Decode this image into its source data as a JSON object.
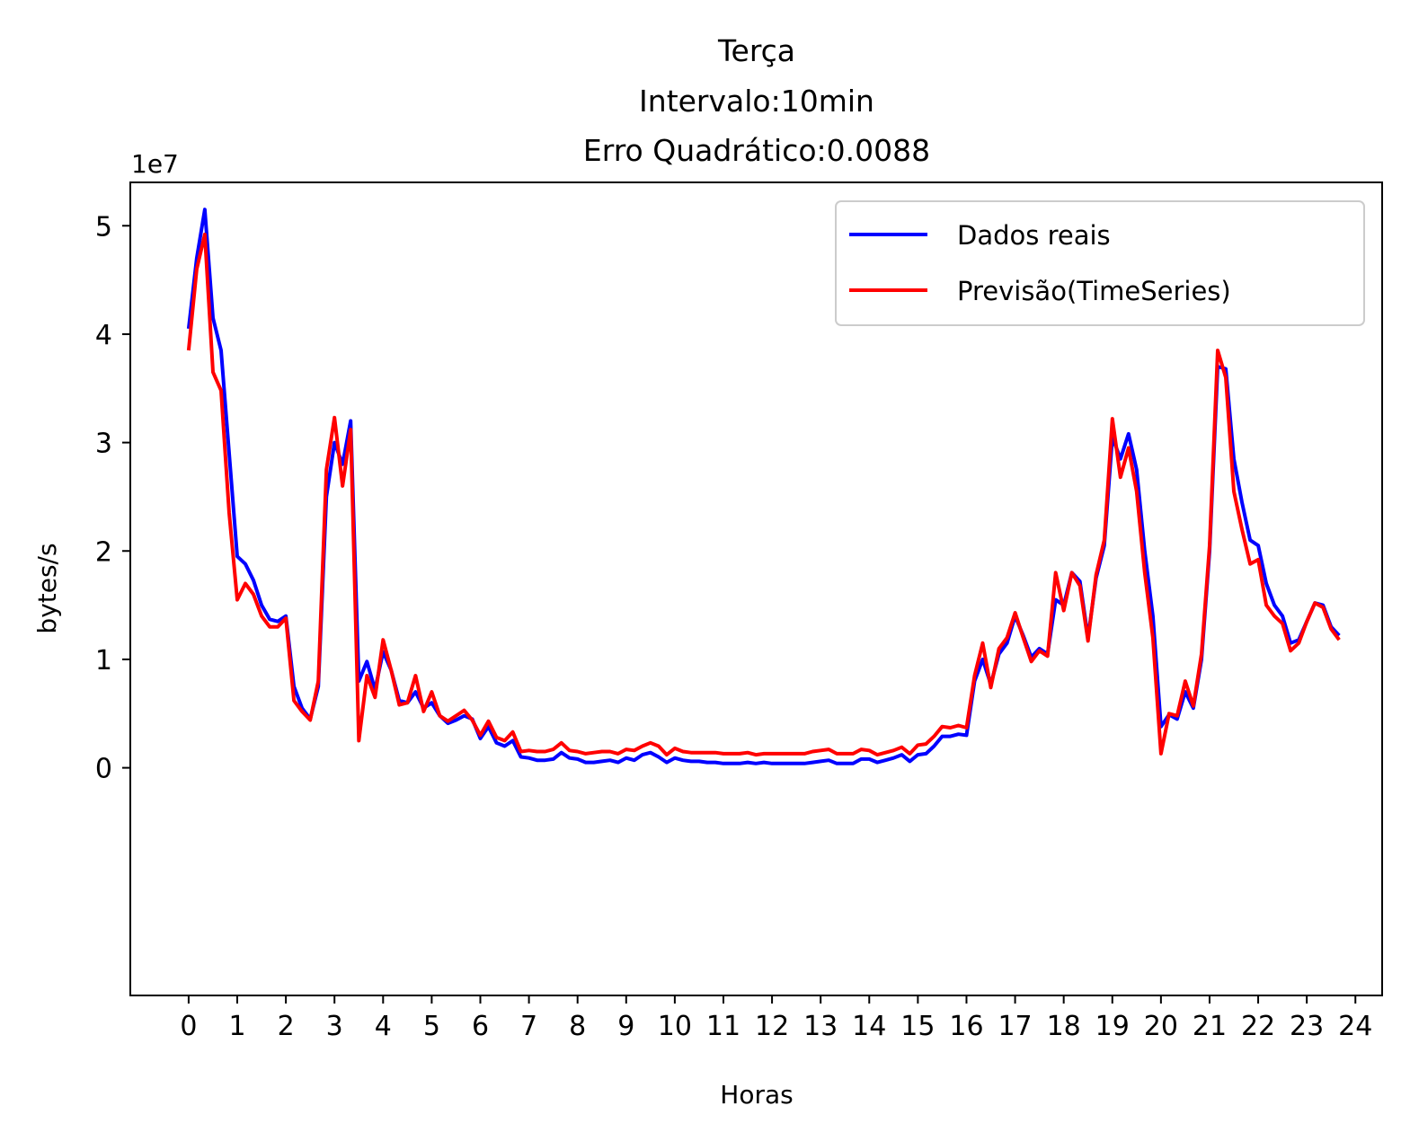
{
  "chart_data": {
    "type": "line",
    "title_lines": [
      "Terça",
      "Intervalo:10min",
      "Erro Quadrático:0.0088"
    ],
    "xlabel": "Horas",
    "ylabel": "bytes/s",
    "y_offset_label": "1e7",
    "y_multiplier": 10000000,
    "xlim": [
      -1.2,
      24.55
    ],
    "ylim": [
      -2.1,
      5.4
    ],
    "x_ticks": [
      0,
      1,
      2,
      3,
      4,
      5,
      6,
      7,
      8,
      9,
      10,
      11,
      12,
      13,
      14,
      15,
      16,
      17,
      18,
      19,
      20,
      21,
      22,
      23,
      24
    ],
    "x_tick_labels": [
      "0",
      "1",
      "2",
      "3",
      "4",
      "5",
      "6",
      "7",
      "8",
      "9",
      "10",
      "11",
      "12",
      "13",
      "14",
      "15",
      "16",
      "17",
      "18",
      "19",
      "20",
      "21",
      "22",
      "23",
      "24"
    ],
    "y_ticks": [
      0,
      1,
      2,
      3,
      4,
      5
    ],
    "y_tick_labels": [
      "0",
      "1",
      "2",
      "3",
      "4",
      "5"
    ],
    "x_step_hours": 0.16667,
    "legend_position": "upper right",
    "series": [
      {
        "name": "Dados reais",
        "color": "#0000ff",
        "values": [
          4.05,
          4.7,
          5.15,
          4.15,
          3.85,
          2.9,
          1.95,
          1.88,
          1.73,
          1.5,
          1.37,
          1.35,
          1.4,
          0.75,
          0.55,
          0.45,
          0.75,
          2.5,
          3.0,
          2.8,
          3.2,
          0.8,
          0.98,
          0.72,
          1.07,
          0.9,
          0.62,
          0.6,
          0.7,
          0.55,
          0.6,
          0.48,
          0.41,
          0.44,
          0.48,
          0.45,
          0.27,
          0.38,
          0.23,
          0.2,
          0.25,
          0.1,
          0.09,
          0.07,
          0.07,
          0.08,
          0.14,
          0.09,
          0.08,
          0.05,
          0.05,
          0.06,
          0.07,
          0.05,
          0.09,
          0.07,
          0.12,
          0.14,
          0.1,
          0.05,
          0.09,
          0.07,
          0.06,
          0.06,
          0.05,
          0.05,
          0.04,
          0.04,
          0.04,
          0.05,
          0.04,
          0.05,
          0.04,
          0.04,
          0.04,
          0.04,
          0.04,
          0.05,
          0.06,
          0.07,
          0.04,
          0.04,
          0.04,
          0.08,
          0.08,
          0.05,
          0.07,
          0.09,
          0.12,
          0.06,
          0.12,
          0.13,
          0.2,
          0.29,
          0.29,
          0.31,
          0.3,
          0.8,
          1.0,
          0.77,
          1.05,
          1.15,
          1.4,
          1.22,
          1.02,
          1.1,
          1.05,
          1.55,
          1.5,
          1.8,
          1.72,
          1.2,
          1.75,
          2.05,
          3.05,
          2.85,
          3.08,
          2.75,
          2.0,
          1.4,
          0.38,
          0.49,
          0.45,
          0.7,
          0.55,
          1.0,
          2.0,
          3.7,
          3.68,
          2.85,
          2.45,
          2.1,
          2.05,
          1.7,
          1.5,
          1.4,
          1.15,
          1.18,
          1.35,
          1.52,
          1.5,
          1.3,
          1.22
        ]
      },
      {
        "name": "Previsão(TimeSeries)",
        "color": "#ff0000",
        "values": [
          3.85,
          4.6,
          4.92,
          3.65,
          3.48,
          2.35,
          1.55,
          1.7,
          1.6,
          1.4,
          1.3,
          1.3,
          1.38,
          0.62,
          0.52,
          0.44,
          0.8,
          2.75,
          3.23,
          2.6,
          3.12,
          0.25,
          0.85,
          0.65,
          1.18,
          0.9,
          0.58,
          0.6,
          0.85,
          0.52,
          0.7,
          0.48,
          0.43,
          0.48,
          0.53,
          0.44,
          0.3,
          0.43,
          0.28,
          0.25,
          0.33,
          0.15,
          0.16,
          0.15,
          0.15,
          0.17,
          0.23,
          0.16,
          0.15,
          0.13,
          0.14,
          0.15,
          0.15,
          0.13,
          0.17,
          0.16,
          0.2,
          0.23,
          0.2,
          0.12,
          0.18,
          0.15,
          0.14,
          0.14,
          0.14,
          0.14,
          0.13,
          0.13,
          0.13,
          0.14,
          0.12,
          0.13,
          0.13,
          0.13,
          0.13,
          0.13,
          0.13,
          0.15,
          0.16,
          0.17,
          0.13,
          0.13,
          0.13,
          0.17,
          0.16,
          0.12,
          0.14,
          0.16,
          0.19,
          0.13,
          0.21,
          0.22,
          0.29,
          0.38,
          0.37,
          0.39,
          0.37,
          0.85,
          1.15,
          0.74,
          1.1,
          1.2,
          1.43,
          1.2,
          0.98,
          1.08,
          1.03,
          1.8,
          1.45,
          1.8,
          1.68,
          1.17,
          1.78,
          2.1,
          3.22,
          2.68,
          2.95,
          2.55,
          1.8,
          1.2,
          0.13,
          0.5,
          0.48,
          0.8,
          0.57,
          1.05,
          2.05,
          3.85,
          3.6,
          2.55,
          2.2,
          1.88,
          1.92,
          1.5,
          1.4,
          1.33,
          1.08,
          1.15,
          1.35,
          1.52,
          1.48,
          1.28,
          1.18
        ]
      }
    ]
  }
}
